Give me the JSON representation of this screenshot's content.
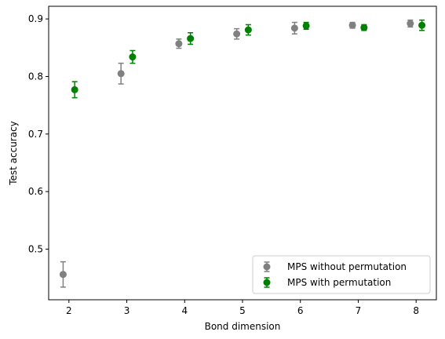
{
  "chart_data": {
    "type": "scatter",
    "title": "",
    "xlabel": "Bond dimension",
    "ylabel": "Test accuracy",
    "xlim": [
      1.65,
      8.35
    ],
    "ylim": [
      0.412,
      0.922
    ],
    "xticks": [
      "2",
      "3",
      "4",
      "5",
      "6",
      "7",
      "8"
    ],
    "yticks": [
      "0.5",
      "0.6",
      "0.7",
      "0.8",
      "0.9"
    ],
    "grid": false,
    "legend_position": "lower-right",
    "series": [
      {
        "name": "MPS without permutation",
        "color": "#808080",
        "x_offset": -0.1,
        "x": [
          2,
          3,
          4,
          5,
          6,
          7,
          8
        ],
        "y": [
          0.456,
          0.805,
          0.857,
          0.874,
          0.884,
          0.889,
          0.892
        ],
        "err": [
          0.022,
          0.018,
          0.008,
          0.009,
          0.01,
          0.005,
          0.006
        ]
      },
      {
        "name": "MPS with permutation",
        "color": "#008000",
        "x_offset": 0.1,
        "x": [
          2,
          3,
          4,
          5,
          6,
          7,
          8
        ],
        "y": [
          0.777,
          0.834,
          0.866,
          0.881,
          0.888,
          0.885,
          0.889
        ],
        "err": [
          0.014,
          0.011,
          0.01,
          0.009,
          0.006,
          0.005,
          0.009
        ]
      }
    ]
  }
}
